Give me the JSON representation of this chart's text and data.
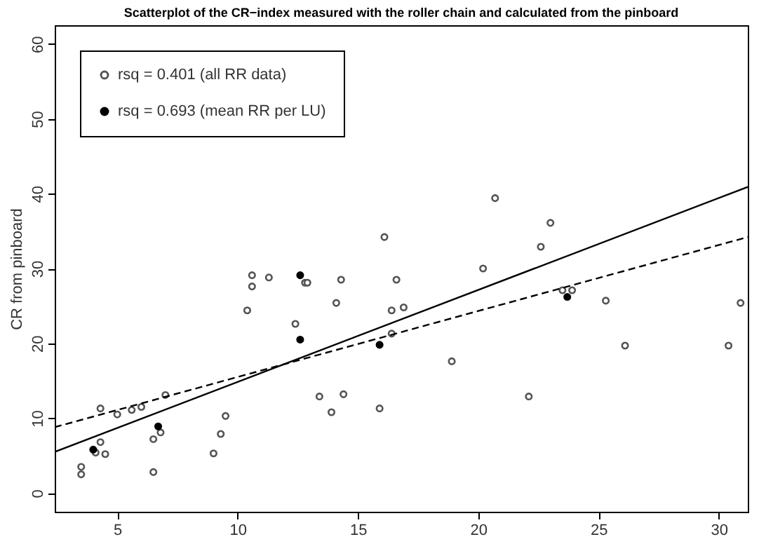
{
  "chart_data": {
    "type": "scatter",
    "title": "Scatterplot of the CR−index measured with the roller chain and calculated from the pinboard",
    "ylabel": "CR from pinboard",
    "xlim": [
      2.4,
      31.2
    ],
    "ylim": [
      -2.5,
      62.5
    ],
    "xticks": [
      5,
      10,
      15,
      20,
      25,
      30
    ],
    "yticks": [
      0,
      10,
      20,
      30,
      40,
      50,
      60
    ],
    "grid": false,
    "legend": "top left",
    "marker": "circle",
    "series": [
      {
        "name": "rsq = 0.401 (all RR data)",
        "color": "#555555",
        "x": [
          3.5,
          3.5,
          4.3,
          5.0,
          5.6,
          6.0,
          7.0,
          4.3,
          4.1,
          4.5,
          6.5,
          6.8,
          6.5,
          9.0,
          9.3,
          9.5,
          13.4,
          16.1,
          10.6,
          10.6,
          11.3,
          12.8,
          12.9,
          14.3,
          16.6,
          10.4,
          14.1,
          16.4,
          16.9,
          12.4,
          16.4,
          18.9,
          14.4,
          13.9,
          15.9,
          20.7,
          23.0,
          22.6,
          20.2,
          23.5,
          23.9,
          25.3,
          26.1,
          30.4,
          22.1,
          30.9
        ],
        "values": [
          3.5,
          2.5,
          11.3,
          10.5,
          11.1,
          11.5,
          13.1,
          6.8,
          5.4,
          5.2,
          7.2,
          8.1,
          2.8,
          5.3,
          7.9,
          10.3,
          12.9,
          34.2,
          29.1,
          27.6,
          28.8,
          28.1,
          28.1,
          28.5,
          28.5,
          24.4,
          25.4,
          24.4,
          24.8,
          22.6,
          21.3,
          17.6,
          13.2,
          10.8,
          11.3,
          39.4,
          36.1,
          32.9,
          30.0,
          27.1,
          27.1,
          25.7,
          19.7,
          19.7,
          12.9,
          25.4
        ]
      },
      {
        "name": "rsq = 0.693 (mean RR per LU)",
        "color": "#000000",
        "x": [
          4.0,
          6.7,
          12.6,
          12.6,
          15.9,
          23.7
        ],
        "values": [
          5.8,
          8.9,
          20.5,
          29.1,
          19.8,
          26.2
        ]
      },
      {
        "type": "line",
        "color": "#000000",
        "line_style": "solid",
        "marker": "none",
        "x": [
          2.4,
          31.2
        ],
        "values": [
          5.5,
          40.9
        ]
      },
      {
        "type": "line",
        "color": "#000000",
        "line_style": "dashed",
        "marker": "none",
        "x": [
          2.4,
          31.2
        ],
        "values": [
          8.8,
          34.2
        ]
      }
    ]
  }
}
